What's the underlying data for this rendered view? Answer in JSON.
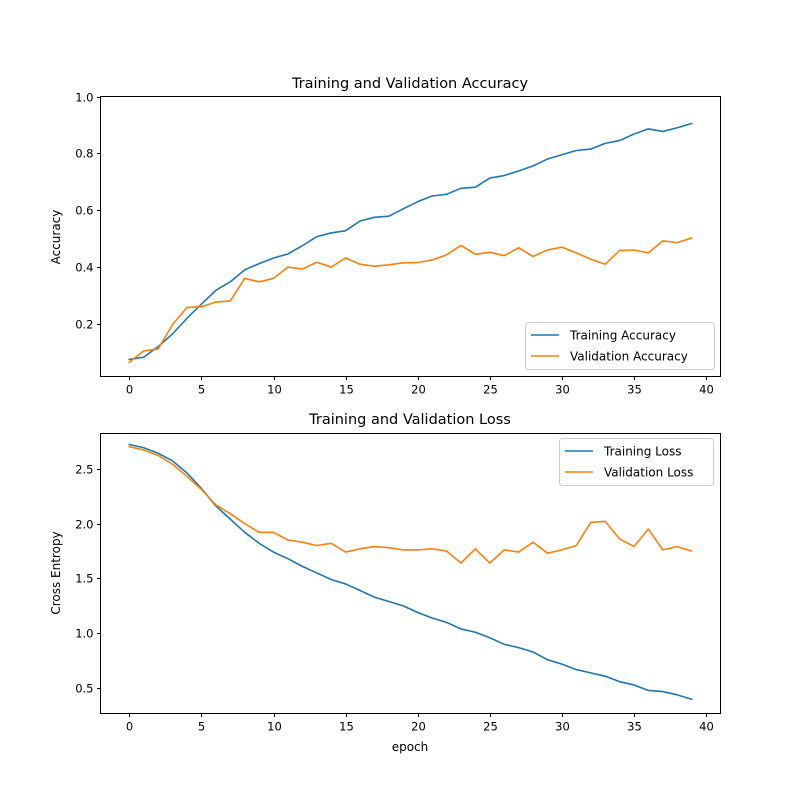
{
  "chart_data": [
    {
      "type": "line",
      "title": "Training and Validation Accuracy",
      "xlabel": "",
      "ylabel": "Accuracy",
      "xlim": [
        -2,
        41
      ],
      "ylim": [
        0.015,
        1.0
      ],
      "xticks": [
        0,
        5,
        10,
        15,
        20,
        25,
        30,
        35,
        40
      ],
      "xtick_labels": [
        "0",
        "5",
        "10",
        "15",
        "20",
        "25",
        "30",
        "35",
        "40"
      ],
      "yticks": [
        0.2,
        0.4,
        0.6,
        0.8,
        1.0
      ],
      "ytick_labels": [
        "0.2",
        "0.4",
        "0.6",
        "0.8",
        "1.0"
      ],
      "grid": false,
      "legend_position": "lower-right",
      "x": [
        0,
        1,
        2,
        3,
        4,
        5,
        6,
        7,
        8,
        9,
        10,
        11,
        12,
        13,
        14,
        15,
        16,
        17,
        18,
        19,
        20,
        21,
        22,
        23,
        24,
        25,
        26,
        27,
        28,
        29,
        30,
        31,
        32,
        33,
        34,
        35,
        36,
        37,
        38,
        39
      ],
      "series": [
        {
          "name": "Training Accuracy",
          "color": "#1f77b4",
          "values": [
            0.075,
            0.083,
            0.12,
            0.165,
            0.22,
            0.27,
            0.318,
            0.348,
            0.39,
            0.412,
            0.432,
            0.446,
            0.475,
            0.507,
            0.52,
            0.528,
            0.562,
            0.575,
            0.579,
            0.605,
            0.63,
            0.65,
            0.656,
            0.677,
            0.681,
            0.713,
            0.722,
            0.738,
            0.756,
            0.78,
            0.795,
            0.81,
            0.815,
            0.835,
            0.845,
            0.868,
            0.886,
            0.877,
            0.89,
            0.905
          ]
        },
        {
          "name": "Validation Accuracy",
          "color": "#ff7f0e",
          "values": [
            0.065,
            0.105,
            0.112,
            0.198,
            0.258,
            0.26,
            0.277,
            0.281,
            0.36,
            0.348,
            0.36,
            0.4,
            0.393,
            0.417,
            0.4,
            0.432,
            0.41,
            0.403,
            0.408,
            0.415,
            0.416,
            0.425,
            0.443,
            0.476,
            0.445,
            0.452,
            0.44,
            0.468,
            0.437,
            0.46,
            0.47,
            0.45,
            0.428,
            0.41,
            0.458,
            0.46,
            0.45,
            0.492,
            0.486,
            0.502
          ]
        }
      ]
    },
    {
      "type": "line",
      "title": "Training and Validation Loss",
      "xlabel": "epoch",
      "ylabel": "Cross Entropy",
      "xlim": [
        -2,
        41
      ],
      "ylim": [
        0.27,
        2.82
      ],
      "xticks": [
        0,
        5,
        10,
        15,
        20,
        25,
        30,
        35,
        40
      ],
      "xtick_labels": [
        "0",
        "5",
        "10",
        "15",
        "20",
        "25",
        "30",
        "35",
        "40"
      ],
      "yticks": [
        0.5,
        1.0,
        1.5,
        2.0,
        2.5
      ],
      "ytick_labels": [
        "0.5",
        "1.0",
        "1.5",
        "2.0",
        "2.5"
      ],
      "grid": false,
      "legend_position": "upper-right",
      "x": [
        0,
        1,
        2,
        3,
        4,
        5,
        6,
        7,
        8,
        9,
        10,
        11,
        12,
        13,
        14,
        15,
        16,
        17,
        18,
        19,
        20,
        21,
        22,
        23,
        24,
        25,
        26,
        27,
        28,
        29,
        30,
        31,
        32,
        33,
        34,
        35,
        36,
        37,
        38,
        39
      ],
      "series": [
        {
          "name": "Training Loss",
          "color": "#1f77b4",
          "values": [
            2.72,
            2.69,
            2.64,
            2.57,
            2.46,
            2.32,
            2.16,
            2.04,
            1.92,
            1.82,
            1.74,
            1.68,
            1.61,
            1.55,
            1.49,
            1.45,
            1.39,
            1.33,
            1.29,
            1.25,
            1.19,
            1.14,
            1.1,
            1.04,
            1.01,
            0.96,
            0.9,
            0.87,
            0.83,
            0.76,
            0.72,
            0.67,
            0.64,
            0.61,
            0.56,
            0.53,
            0.48,
            0.47,
            0.44,
            0.4
          ]
        },
        {
          "name": "Validation Loss",
          "color": "#ff7f0e",
          "values": [
            2.7,
            2.67,
            2.62,
            2.54,
            2.43,
            2.31,
            2.17,
            2.09,
            2.0,
            1.92,
            1.92,
            1.85,
            1.83,
            1.8,
            1.82,
            1.74,
            1.77,
            1.79,
            1.78,
            1.76,
            1.76,
            1.77,
            1.75,
            1.64,
            1.77,
            1.64,
            1.76,
            1.74,
            1.83,
            1.73,
            1.76,
            1.8,
            2.01,
            2.02,
            1.86,
            1.79,
            1.95,
            1.76,
            1.79,
            1.75
          ]
        }
      ]
    }
  ]
}
